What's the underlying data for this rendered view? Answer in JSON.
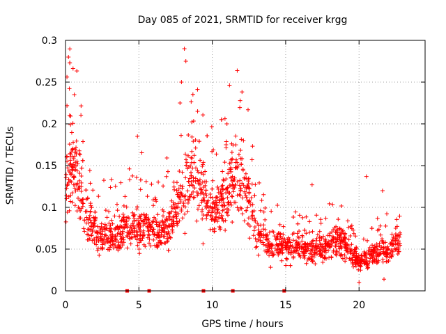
{
  "chart_data": {
    "type": "scatter",
    "title": "Day 085 of 2021, SRMTID for receiver krgg",
    "xlabel": "GPS time / hours",
    "ylabel": "SRMTID / TECUs",
    "xlim": [
      0,
      24.5
    ],
    "ylim": [
      0,
      0.3
    ],
    "xticks": [
      0,
      5,
      10,
      15,
      20
    ],
    "xtick_labels": [
      "0",
      "5",
      "10",
      "15",
      "20"
    ],
    "yticks": [
      0,
      0.05,
      0.1,
      0.15,
      0.2,
      0.25,
      0.3
    ],
    "ytick_labels": [
      "0",
      "0.05",
      "0.1",
      "0.15",
      "0.2",
      "0.25",
      "0.3"
    ],
    "grid": true,
    "marker": "+",
    "color": "#ff0000",
    "envelope": {
      "description": "approximate median level of the dense point cloud over time",
      "x": [
        0,
        0.3,
        0.7,
        1,
        1.5,
        2,
        2.5,
        3,
        3.5,
        4,
        4.5,
        5,
        5.5,
        6,
        6.5,
        7,
        7.5,
        8,
        8.5,
        9,
        9.5,
        10,
        10.5,
        11,
        11.5,
        12,
        12.5,
        13,
        13.5,
        14,
        14.5,
        15,
        15.5,
        16,
        16.5,
        17,
        17.5,
        18,
        18.5,
        19,
        19.5,
        20,
        20.5,
        21,
        21.5,
        22,
        22.5,
        22.8
      ],
      "y": [
        0.12,
        0.15,
        0.14,
        0.12,
        0.09,
        0.075,
        0.065,
        0.065,
        0.07,
        0.075,
        0.07,
        0.075,
        0.08,
        0.075,
        0.07,
        0.08,
        0.09,
        0.12,
        0.15,
        0.13,
        0.11,
        0.095,
        0.1,
        0.11,
        0.14,
        0.14,
        0.11,
        0.075,
        0.06,
        0.055,
        0.055,
        0.055,
        0.055,
        0.05,
        0.05,
        0.05,
        0.05,
        0.055,
        0.06,
        0.055,
        0.045,
        0.035,
        0.035,
        0.045,
        0.05,
        0.045,
        0.06,
        0.055
      ]
    },
    "highlights": [
      {
        "x": 0.2,
        "y": 0.28
      },
      {
        "x": 0.1,
        "y": 0.256
      },
      {
        "x": 0.6,
        "y": 0.235
      },
      {
        "x": 8.1,
        "y": 0.29
      },
      {
        "x": 8.2,
        "y": 0.275
      },
      {
        "x": 7.9,
        "y": 0.25
      },
      {
        "x": 7.8,
        "y": 0.225
      },
      {
        "x": 9.0,
        "y": 0.215
      },
      {
        "x": 11.0,
        "y": 0.2
      },
      {
        "x": 4.9,
        "y": 0.185
      },
      {
        "x": 20.5,
        "y": 0.137
      },
      {
        "x": 21.6,
        "y": 0.12
      },
      {
        "x": 16.8,
        "y": 0.127
      },
      {
        "x": 20.0,
        "y": 0.01
      },
      {
        "x": 21.7,
        "y": 0.014
      }
    ],
    "gap_markers": [
      {
        "x": 4.2,
        "y": 0
      },
      {
        "x": 5.7,
        "y": 0
      },
      {
        "x": 9.4,
        "y": 0
      },
      {
        "x": 11.4,
        "y": 0
      },
      {
        "x": 14.9,
        "y": 0
      }
    ]
  }
}
